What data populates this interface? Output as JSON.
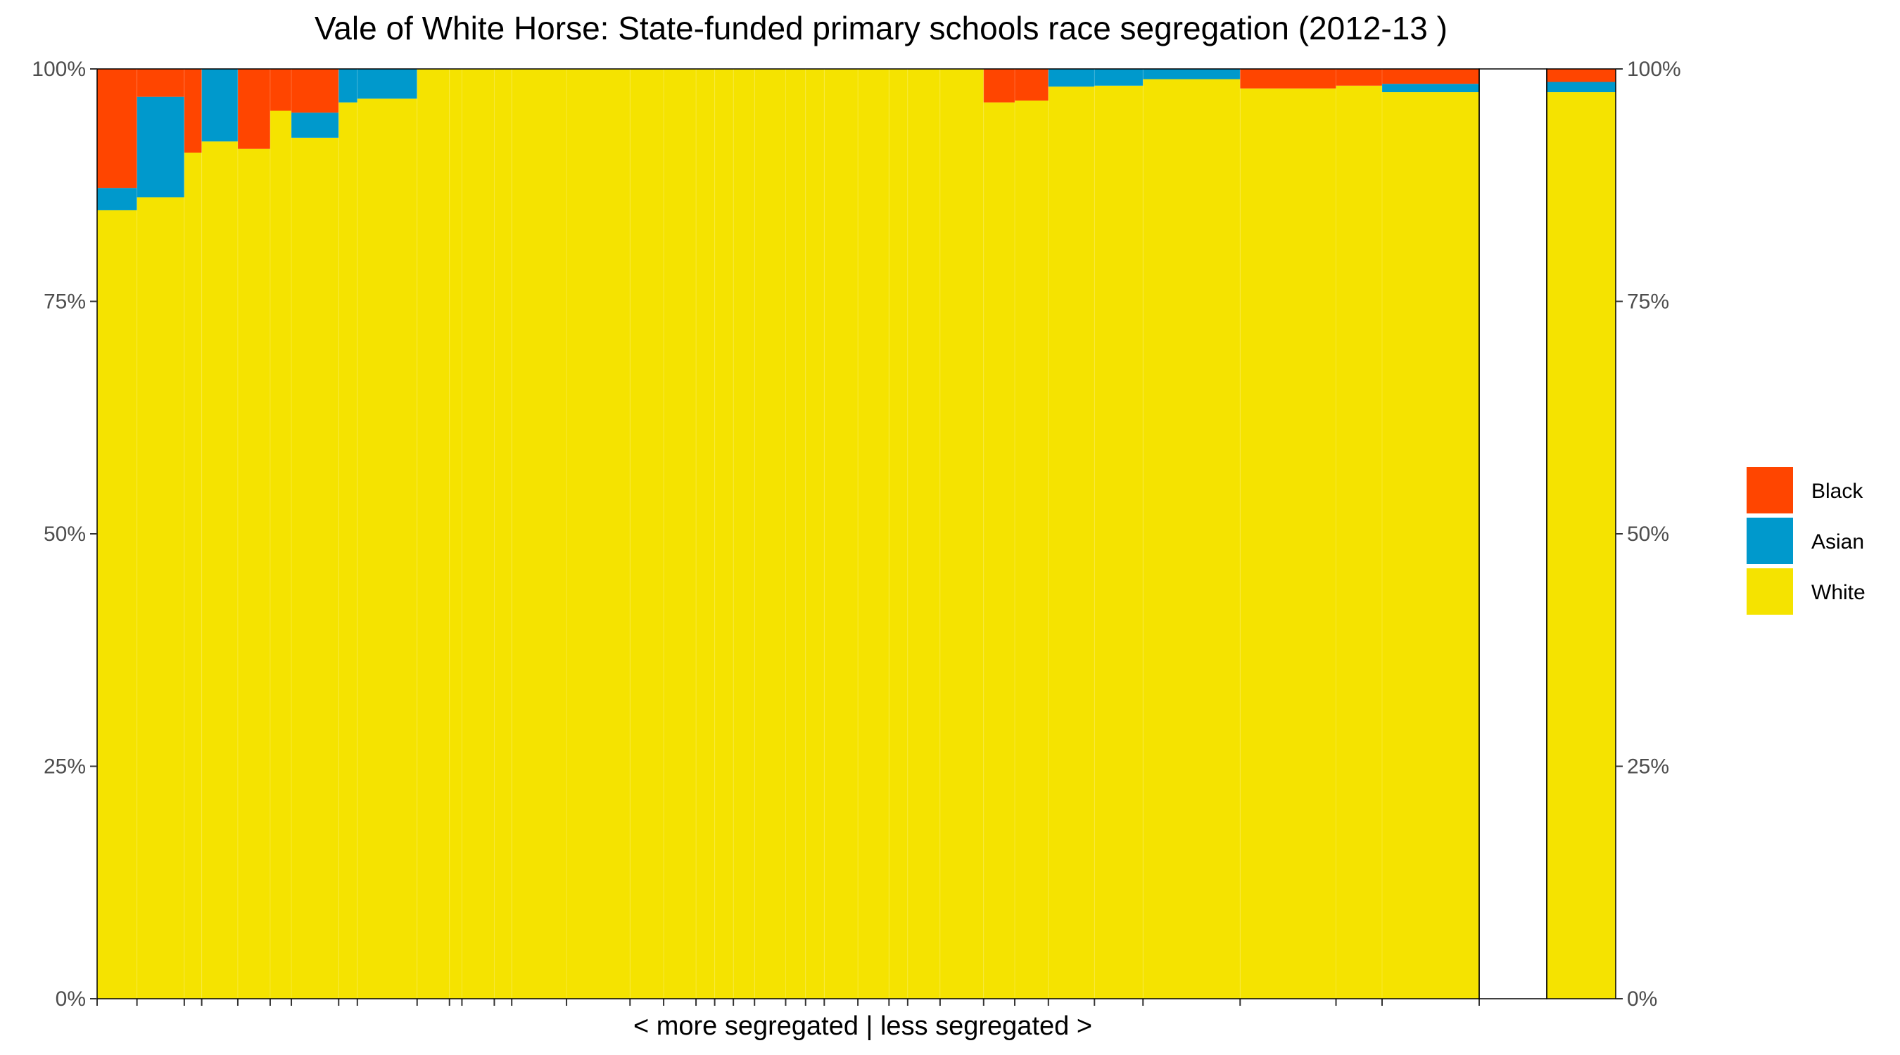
{
  "chart_data": {
    "type": "bar",
    "title": "Vale of White Horse: State-funded primary schools race segregation (2012-13 )",
    "xlabel": "< more segregated | less segregated >",
    "ylabel": "",
    "ylim": [
      0,
      100
    ],
    "y_ticks": [
      "0%",
      "25%",
      "50%",
      "75%",
      "100%"
    ],
    "stacked": true,
    "legend_position": "right",
    "legend": [
      {
        "name": "Black",
        "color": "#FF4500"
      },
      {
        "name": "Asian",
        "color": "#0099CC"
      },
      {
        "name": "White",
        "color": "#F5E300"
      }
    ],
    "series_order_bottom_to_top": [
      "White",
      "Asian",
      "Black"
    ],
    "schools": [
      {
        "width": 32,
        "white": 84.8,
        "asian": 2.4,
        "black": 12.8
      },
      {
        "width": 38,
        "white": 86.2,
        "asian": 10.8,
        "black": 3.0
      },
      {
        "width": 14,
        "white": 91.0,
        "asian": 0.0,
        "black": 9.0
      },
      {
        "width": 29,
        "white": 92.2,
        "asian": 7.8,
        "black": 0.0
      },
      {
        "width": 26,
        "white": 91.4,
        "asian": 0.0,
        "black": 8.6
      },
      {
        "width": 17,
        "white": 95.5,
        "asian": 0.0,
        "black": 4.5
      },
      {
        "width": 38,
        "white": 92.6,
        "asian": 2.7,
        "black": 4.7
      },
      {
        "width": 15,
        "white": 96.4,
        "asian": 3.6,
        "black": 0.0
      },
      {
        "width": 48,
        "white": 96.8,
        "asian": 3.2,
        "black": 0.0
      },
      {
        "width": 26,
        "white": 100,
        "asian": 0,
        "black": 0
      },
      {
        "width": 10,
        "white": 100,
        "asian": 0,
        "black": 0
      },
      {
        "width": 26,
        "white": 100,
        "asian": 0,
        "black": 0
      },
      {
        "width": 14,
        "white": 100,
        "asian": 0,
        "black": 0
      },
      {
        "width": 44,
        "white": 100,
        "asian": 0,
        "black": 0
      },
      {
        "width": 51,
        "white": 100,
        "asian": 0,
        "black": 0
      },
      {
        "width": 27,
        "white": 100,
        "asian": 0,
        "black": 0
      },
      {
        "width": 26,
        "white": 100,
        "asian": 0,
        "black": 0
      },
      {
        "width": 15,
        "white": 100,
        "asian": 0,
        "black": 0
      },
      {
        "width": 15,
        "white": 100,
        "asian": 0,
        "black": 0
      },
      {
        "width": 17,
        "white": 100,
        "asian": 0,
        "black": 0
      },
      {
        "width": 25,
        "white": 100,
        "asian": 0,
        "black": 0
      },
      {
        "width": 16,
        "white": 100,
        "asian": 0,
        "black": 0
      },
      {
        "width": 15,
        "white": 100,
        "asian": 0,
        "black": 0
      },
      {
        "width": 27,
        "white": 100,
        "asian": 0,
        "black": 0
      },
      {
        "width": 25,
        "white": 100,
        "asian": 0,
        "black": 0
      },
      {
        "width": 15,
        "white": 100,
        "asian": 0,
        "black": 0
      },
      {
        "width": 26,
        "white": 100,
        "asian": 0,
        "black": 0
      },
      {
        "width": 35,
        "white": 100,
        "asian": 0,
        "black": 0
      },
      {
        "width": 25,
        "white": 96.4,
        "asian": 0.0,
        "black": 3.6
      },
      {
        "width": 27,
        "white": 96.6,
        "asian": 0.0,
        "black": 3.4
      },
      {
        "width": 37,
        "white": 98.1,
        "asian": 1.9,
        "black": 0.0
      },
      {
        "width": 39,
        "white": 98.2,
        "asian": 1.8,
        "black": 0.0
      },
      {
        "width": 78,
        "white": 98.9,
        "asian": 1.1,
        "black": 0.0
      },
      {
        "width": 77,
        "white": 97.9,
        "asian": 0.0,
        "black": 2.1
      },
      {
        "width": 37,
        "white": 98.2,
        "asian": 0.0,
        "black": 1.8
      },
      {
        "width": 78,
        "white": 97.5,
        "asian": 0.9,
        "black": 1.6
      }
    ],
    "overall": {
      "white": 97.5,
      "asian": 1.1,
      "black": 1.4
    }
  }
}
